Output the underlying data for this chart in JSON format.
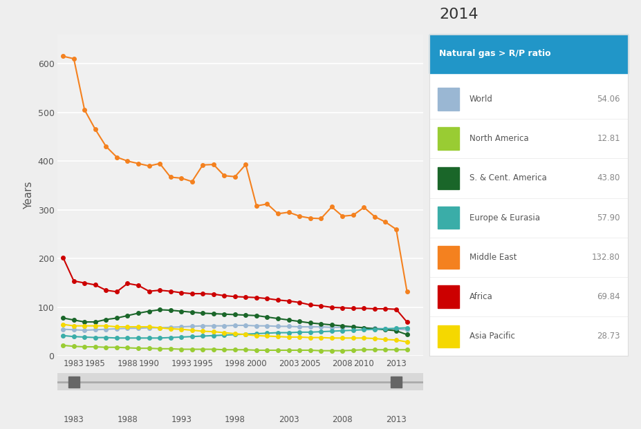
{
  "title": "2014",
  "legend_title": "Natural gas > R/P ratio",
  "ylabel": "Years",
  "years": [
    1982,
    1983,
    1984,
    1985,
    1986,
    1987,
    1988,
    1989,
    1990,
    1991,
    1992,
    1993,
    1994,
    1995,
    1996,
    1997,
    1998,
    1999,
    2000,
    2001,
    2002,
    2003,
    2004,
    2005,
    2006,
    2007,
    2008,
    2009,
    2010,
    2011,
    2012,
    2013,
    2014
  ],
  "series": {
    "World": {
      "color": "#9ab7d3",
      "values": [
        55,
        54,
        53,
        54,
        55,
        56,
        57,
        57,
        58,
        58,
        59,
        60,
        61,
        62,
        62,
        62,
        63,
        63,
        62,
        62,
        61,
        61,
        60,
        60,
        60,
        59,
        59,
        60,
        58,
        57,
        56,
        55,
        54
      ],
      "final": "54.06"
    },
    "North America": {
      "color": "#99cc33",
      "values": [
        22,
        20,
        19,
        19,
        18,
        18,
        17,
        16,
        16,
        15,
        15,
        14,
        14,
        14,
        14,
        13,
        13,
        13,
        12,
        12,
        12,
        12,
        12,
        12,
        11,
        11,
        11,
        12,
        13,
        13,
        13,
        13,
        13
      ],
      "final": "12.81"
    },
    "S. & Cent. America": {
      "color": "#1a6629",
      "values": [
        78,
        74,
        70,
        70,
        75,
        78,
        83,
        88,
        92,
        95,
        94,
        92,
        90,
        88,
        87,
        86,
        85,
        84,
        83,
        80,
        77,
        74,
        71,
        68,
        66,
        64,
        62,
        60,
        58,
        56,
        54,
        52,
        44
      ],
      "final": "43.80"
    },
    "Europe & Eurasia": {
      "color": "#3aada8",
      "values": [
        42,
        40,
        39,
        38,
        38,
        37,
        37,
        37,
        37,
        37,
        38,
        39,
        40,
        41,
        42,
        43,
        44,
        45,
        46,
        47,
        48,
        48,
        49,
        49,
        50,
        51,
        52,
        53,
        54,
        55,
        56,
        57,
        58
      ],
      "final": "57.90"
    },
    "Middle East": {
      "color": "#f4811f",
      "values": [
        615,
        610,
        505,
        465,
        430,
        408,
        400,
        395,
        390,
        395,
        367,
        365,
        358,
        392,
        393,
        370,
        368,
        393,
        308,
        312,
        292,
        295,
        287,
        283,
        282,
        306,
        287,
        289,
        305,
        286,
        275,
        260,
        133
      ],
      "final": "132.80"
    },
    "Africa": {
      "color": "#cc0000",
      "values": [
        202,
        154,
        150,
        146,
        135,
        132,
        149,
        145,
        133,
        135,
        133,
        130,
        128,
        128,
        127,
        124,
        122,
        121,
        120,
        118,
        115,
        113,
        110,
        105,
        103,
        100,
        99,
        98,
        98,
        97,
        97,
        96,
        70
      ],
      "final": "69.84"
    },
    "Asia Pacific": {
      "color": "#f5d800",
      "values": [
        65,
        62,
        62,
        62,
        62,
        60,
        60,
        60,
        60,
        58,
        56,
        55,
        53,
        51,
        50,
        48,
        46,
        44,
        42,
        41,
        40,
        39,
        39,
        38,
        38,
        37,
        37,
        37,
        37,
        36,
        34,
        33,
        29
      ],
      "final": "28.73"
    }
  },
  "legend_entries": [
    "World",
    "North America",
    "S. & Cent. America",
    "Europe & Eurasia",
    "Middle East",
    "Africa",
    "Asia Pacific"
  ],
  "legend_values": [
    "54.06",
    "12.81",
    "43.80",
    "57.90",
    "132.80",
    "69.84",
    "28.73"
  ],
  "legend_colors": [
    "#9ab7d3",
    "#99cc33",
    "#1a6629",
    "#3aada8",
    "#f4811f",
    "#cc0000",
    "#f5d800"
  ],
  "background_color": "#eeeeee",
  "plot_bg_color": "#f0f0f0",
  "grid_color": "#ffffff",
  "ylim": [
    0,
    660
  ],
  "yticks": [
    0,
    100,
    200,
    300,
    400,
    500,
    600
  ],
  "xtick_positions": [
    1983,
    1985,
    1988,
    1990,
    1993,
    1995,
    1998,
    2000,
    2003,
    2005,
    2008,
    2010,
    2013
  ],
  "xtick_labels": [
    "1983",
    "1985",
    "1988",
    "1990",
    "1993",
    "1995",
    "1998",
    "2000",
    "2003",
    "2005",
    "2008",
    "2010",
    "2013"
  ],
  "slider_xticks": [
    1983,
    1988,
    1993,
    1998,
    2003,
    2008,
    2013
  ],
  "slider_labels": [
    "1983",
    "1988",
    "1993",
    "1998",
    "2003",
    "2008",
    "2013"
  ]
}
